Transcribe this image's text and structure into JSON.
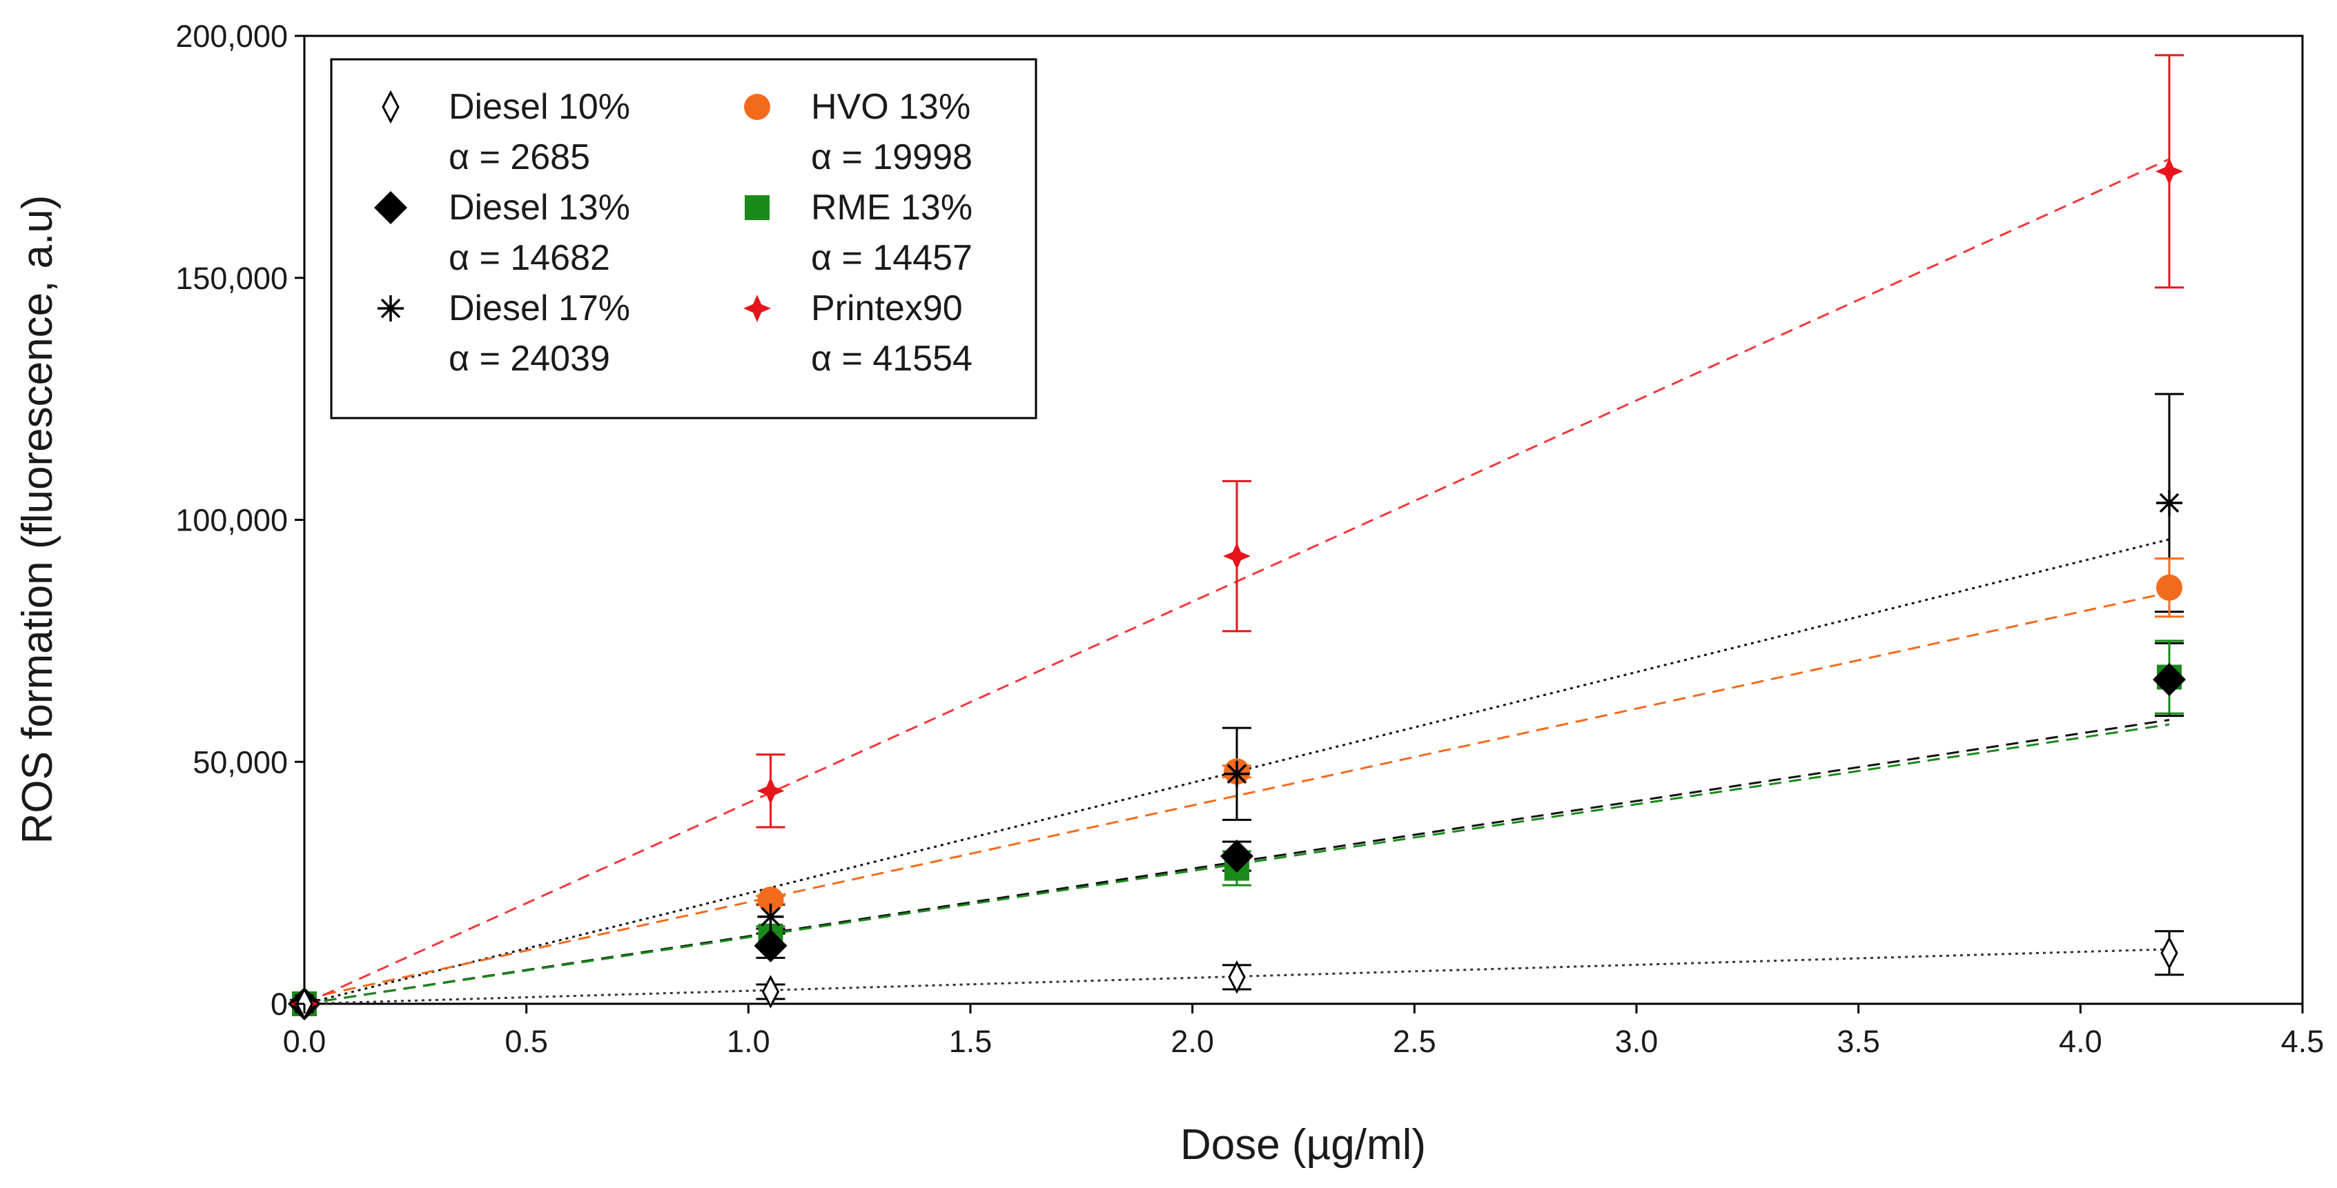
{
  "chart_data": {
    "type": "scatter",
    "title": "",
    "xlabel": "Dose (µg/ml)",
    "ylabel": "ROS formation (fluorescence, a.u)",
    "xlim": [
      0,
      4.5
    ],
    "ylim": [
      0,
      200000
    ],
    "xticks": [
      {
        "value": 0,
        "label": "0.0"
      },
      {
        "value": 0.5,
        "label": "0.5"
      },
      {
        "value": 1,
        "label": "1.0"
      },
      {
        "value": 1.5,
        "label": "1.5"
      },
      {
        "value": 2,
        "label": "2.0"
      },
      {
        "value": 2.5,
        "label": "2.5"
      },
      {
        "value": 3,
        "label": "3.0"
      },
      {
        "value": 3.5,
        "label": "3.5"
      },
      {
        "value": 4,
        "label": "4.0"
      },
      {
        "value": 4.5,
        "label": "4.5"
      }
    ],
    "yticks": [
      {
        "value": 0,
        "label": "0"
      },
      {
        "value": 50000,
        "label": "50,000"
      },
      {
        "value": 100000,
        "label": "100,000"
      },
      {
        "value": 150000,
        "label": "150,000"
      },
      {
        "value": 200000,
        "label": "200,000"
      }
    ],
    "grid": false,
    "legend_position": "top-left",
    "series": [
      {
        "name": "Diesel 10%",
        "alpha_label": "α = 2685",
        "slope": 2685,
        "fit_intercept": 0,
        "color": "#000000",
        "line_color": "#333333",
        "marker": "diamond-open",
        "line_style": "dotted",
        "x": [
          0,
          1.05,
          2.1,
          4.2
        ],
        "y": [
          0,
          2500,
          5500,
          10500
        ],
        "err": [
          500,
          1500,
          2500,
          4500
        ]
      },
      {
        "name": "Diesel 13%",
        "alpha_label": "α = 14682",
        "slope": 14682,
        "fit_intercept": -3000,
        "color": "#000000",
        "line_color": "#111111",
        "marker": "diamond-filled",
        "line_style": "dashed",
        "x": [
          0,
          1.05,
          2.1,
          4.2
        ],
        "y": [
          0,
          12000,
          30500,
          67000
        ],
        "err": [
          800,
          2500,
          3000,
          7500
        ]
      },
      {
        "name": "Diesel 17%",
        "alpha_label": "α = 24039",
        "slope": 24039,
        "fit_intercept": -5000,
        "color": "#000000",
        "line_color": "#111111",
        "marker": "asterisk",
        "line_style": "dotted",
        "x": [
          0,
          1.05,
          2.1,
          4.2
        ],
        "y": [
          0,
          18000,
          47500,
          103500
        ],
        "err": [
          600,
          2500,
          9500,
          22500
        ]
      },
      {
        "name": "HVO 13%",
        "alpha_label": "α = 19998",
        "slope": 19998,
        "fit_intercept": 1000,
        "color": "#f26b1d",
        "line_color": "#f26b1d",
        "marker": "circle",
        "line_style": "dashed",
        "x": [
          0,
          1.05,
          2.1,
          4.2
        ],
        "y": [
          0,
          21500,
          48000,
          86000
        ],
        "err": [
          400,
          800,
          1200,
          6000
        ]
      },
      {
        "name": "RME 13%",
        "alpha_label": "α = 14457",
        "slope": 14457,
        "fit_intercept": -3000,
        "color": "#1a8a1a",
        "line_color": "#1a8a1a",
        "marker": "square",
        "line_style": "dashed",
        "x": [
          0,
          1.05,
          2.1,
          4.2
        ],
        "y": [
          0,
          14000,
          28000,
          67500
        ],
        "err": [
          500,
          2000,
          3500,
          7500
        ]
      },
      {
        "name": "Printex90",
        "alpha_label": "α = 41554",
        "slope": 41554,
        "fit_intercept": 0,
        "color": "#e8141b",
        "line_color": "#f0393d",
        "marker": "star4",
        "line_style": "dashed",
        "x": [
          0,
          1.05,
          2.1,
          4.2
        ],
        "y": [
          0,
          44000,
          92500,
          172000
        ],
        "err": [
          600,
          7500,
          15500,
          24000
        ]
      }
    ]
  }
}
